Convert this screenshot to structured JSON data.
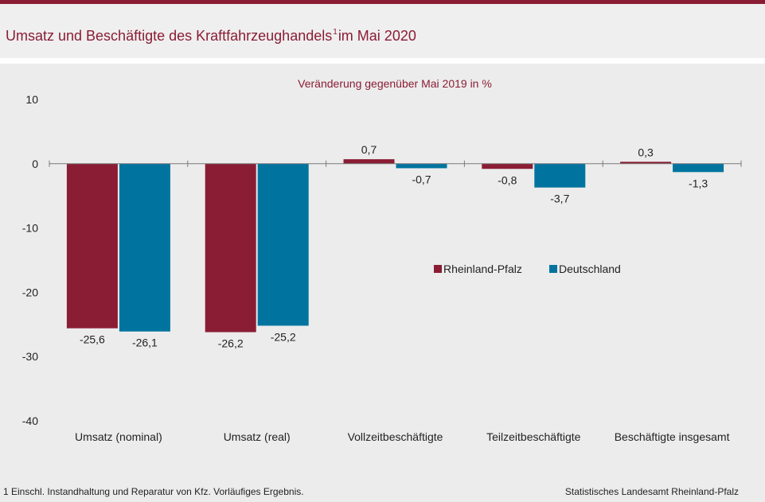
{
  "header": {
    "title": "Umsatz und Beschäftigte des Kraftfahrzeughandels",
    "footnote_mark": "1",
    "title_suffix": "im Mai 2020"
  },
  "chart_data": {
    "type": "bar",
    "subtitle": "Veränderung gegenüber Mai 2019 in %",
    "categories": [
      "Umsatz (nominal)",
      "Umsatz (real)",
      "Vollzeitbeschäftigte",
      "Teilzeitbeschäftigte",
      "Beschäftigte insgesamt"
    ],
    "series": [
      {
        "name": "Rheinland-Pfalz",
        "color": "#8a1d34",
        "values": [
          -25.6,
          -26.2,
          0.7,
          -0.8,
          0.3
        ],
        "labels": [
          "-25,6",
          "-26,2",
          "0,7",
          "-0,8",
          "0,3"
        ]
      },
      {
        "name": "Deutschland",
        "color": "#00749f",
        "values": [
          -26.1,
          -25.2,
          -0.7,
          -3.7,
          -1.3
        ],
        "labels": [
          "-26,1",
          "-25,2",
          "-0,7",
          "-3,7",
          "-1,3"
        ]
      }
    ],
    "ylim": [
      -40,
      10
    ],
    "yticks": [
      10,
      0,
      -10,
      -20,
      -30,
      -40
    ],
    "ytick_labels": [
      "10",
      "0",
      "-10",
      "-20",
      "-30",
      "-40"
    ],
    "legend_position": "center-right",
    "grid": false
  },
  "footer": {
    "footnote": "1 Einschl. Instandhaltung und Reparatur von Kfz. Vorläufiges Ergebnis.",
    "source": "Statistisches Landesamt Rheinland-Pfalz"
  }
}
